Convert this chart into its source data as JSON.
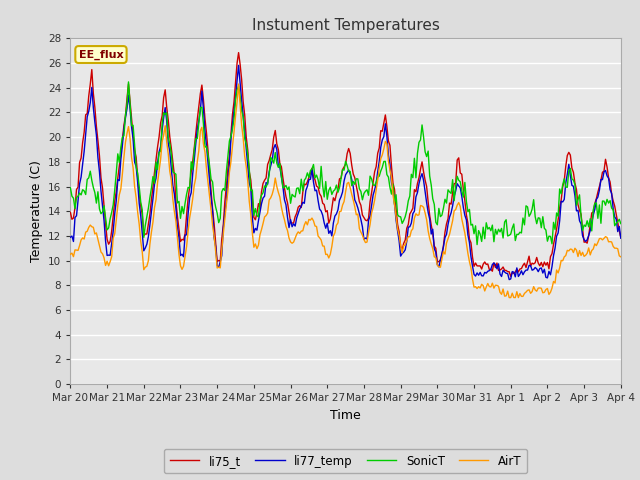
{
  "title": "Instument Temperatures",
  "xlabel": "Time",
  "ylabel": "Temperature (C)",
  "ylim": [
    0,
    28
  ],
  "yticks": [
    0,
    2,
    4,
    6,
    8,
    10,
    12,
    14,
    16,
    18,
    20,
    22,
    24,
    26,
    28
  ],
  "x_labels": [
    "Mar 20",
    "Mar 21",
    "Mar 22",
    "Mar 23",
    "Mar 24",
    "Mar 25",
    "Mar 26",
    "Mar 27",
    "Mar 28",
    "Mar 29",
    "Mar 30",
    "Mar 31",
    "Apr 1",
    "Apr 2",
    "Apr 3",
    "Apr 4"
  ],
  "series_colors": {
    "li75_t": "#cc0000",
    "li77_temp": "#0000cc",
    "SonicT": "#00cc00",
    "AirT": "#ff9900"
  },
  "legend_label": "EE_flux",
  "legend_box_color": "#ffffcc",
  "legend_box_edge": "#ccaa00",
  "background_color": "#dddddd",
  "plot_bg_color": "#e8e8e8",
  "grid_color": "#ffffff",
  "title_color": "#333333",
  "linewidth": 1.0,
  "figsize": [
    6.4,
    4.8
  ],
  "dpi": 100,
  "peaks_li75": [
    25.3,
    24.0,
    23.8,
    24.5,
    27.3,
    20.4,
    17.5,
    19.0,
    22.3,
    18.0,
    18.3,
    9.5,
    10.0,
    19.0,
    18.0
  ],
  "valleys_li75": [
    13.5,
    11.5,
    12.0,
    11.5,
    10.0,
    13.5,
    13.0,
    13.5,
    13.0,
    11.0,
    10.0,
    9.5,
    9.0,
    9.5,
    12.0
  ],
  "peaks_li77": [
    24.0,
    23.5,
    22.5,
    23.5,
    26.0,
    19.5,
    17.0,
    17.5,
    21.0,
    17.0,
    16.7,
    9.5,
    9.5,
    17.5,
    17.5
  ],
  "valleys_li77": [
    12.0,
    10.5,
    11.0,
    10.5,
    9.5,
    12.5,
    12.5,
    12.0,
    12.0,
    10.5,
    10.0,
    9.0,
    8.8,
    9.0,
    11.5
  ],
  "peaks_sonic": [
    16.5,
    24.0,
    22.0,
    22.5,
    24.5,
    18.5,
    17.5,
    17.5,
    17.5,
    20.5,
    17.0,
    12.5,
    14.5,
    17.5,
    15.0
  ],
  "valleys_sonic": [
    15.0,
    13.0,
    13.0,
    13.5,
    13.5,
    14.0,
    15.0,
    15.5,
    15.5,
    13.0,
    13.0,
    12.0,
    12.0,
    12.0,
    13.0
  ],
  "peaks_air": [
    13.0,
    21.0,
    21.0,
    21.0,
    24.0,
    16.5,
    13.5,
    16.5,
    20.0,
    14.5,
    15.0,
    8.0,
    7.5,
    11.0,
    12.0
  ],
  "valleys_air": [
    10.5,
    9.5,
    9.3,
    9.3,
    9.5,
    11.0,
    11.5,
    10.5,
    11.5,
    11.0,
    9.5,
    7.8,
    6.8,
    7.5,
    10.5
  ]
}
